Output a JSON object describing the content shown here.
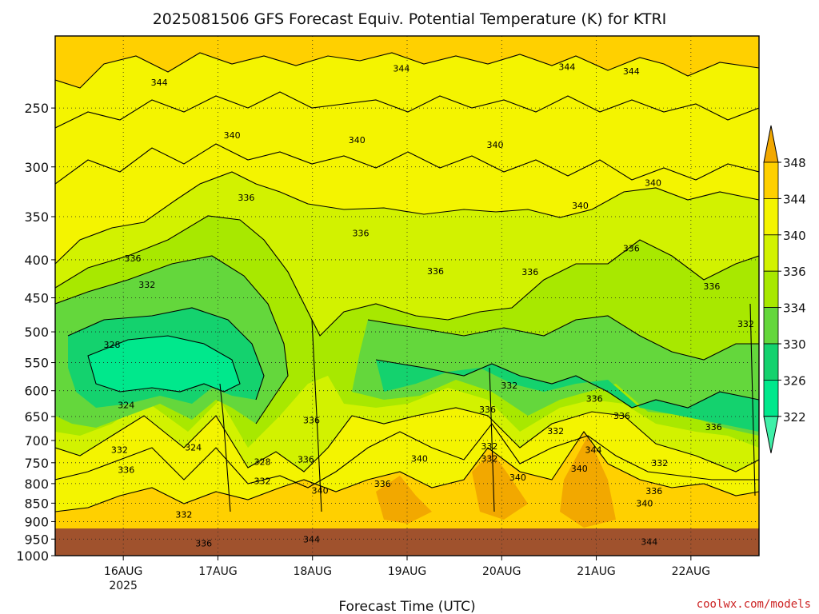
{
  "chart_data": {
    "type": "heatmap",
    "title": "2025081506 GFS Forecast Equiv. Potential Temperature (K) for KTRI",
    "xlabel": "Forecast Time (UTC)",
    "ylabel": "",
    "y_axis": {
      "scale": "log",
      "inverted": true,
      "ylim": [
        1000,
        200
      ]
    },
    "yticks": [
      250,
      300,
      350,
      400,
      450,
      500,
      550,
      600,
      650,
      700,
      750,
      800,
      850,
      900,
      950,
      1000
    ],
    "x_axis": {
      "xlim": [
        -0.72,
        6.72
      ],
      "unit": "days from 16AUG 00Z"
    },
    "xticks": [
      {
        "x": 0,
        "label": "16AUG",
        "sublabel": "2025"
      },
      {
        "x": 1,
        "label": "17AUG",
        "sublabel": ""
      },
      {
        "x": 2,
        "label": "18AUG",
        "sublabel": ""
      },
      {
        "x": 3,
        "label": "19AUG",
        "sublabel": ""
      },
      {
        "x": 4,
        "label": "20AUG",
        "sublabel": ""
      },
      {
        "x": 5,
        "label": "21AUG",
        "sublabel": ""
      },
      {
        "x": 6,
        "label": "22AUG",
        "sublabel": ""
      }
    ],
    "grid": true,
    "ground_below_hpa": 965,
    "colorbar": {
      "labels": [
        "348",
        "344",
        "340",
        "336",
        "334",
        "330",
        "326",
        "322"
      ],
      "colors": [
        "#f2a800",
        "#ffd000",
        "#f4f400",
        "#d2f200",
        "#a8e800",
        "#64d73c",
        "#14d26e",
        "#00e88c",
        "#40f0a8"
      ]
    },
    "contour_labels": [
      {
        "text": "344",
        "x": 0.38,
        "p": 231
      },
      {
        "text": "344",
        "x": 2.94,
        "p": 221
      },
      {
        "text": "344",
        "x": 4.69,
        "p": 220
      },
      {
        "text": "344",
        "x": 5.37,
        "p": 223
      },
      {
        "text": "340",
        "x": 1.15,
        "p": 272
      },
      {
        "text": "340",
        "x": 2.47,
        "p": 276
      },
      {
        "text": "340",
        "x": 3.93,
        "p": 280
      },
      {
        "text": "340",
        "x": 5.6,
        "p": 315
      },
      {
        "text": "340",
        "x": 4.83,
        "p": 338
      },
      {
        "text": "336",
        "x": 1.3,
        "p": 330
      },
      {
        "text": "336",
        "x": 2.51,
        "p": 368
      },
      {
        "text": "336",
        "x": 3.3,
        "p": 414
      },
      {
        "text": "336",
        "x": 0.1,
        "p": 398
      },
      {
        "text": "336",
        "x": 4.3,
        "p": 415
      },
      {
        "text": "336",
        "x": 5.37,
        "p": 386
      },
      {
        "text": "336",
        "x": 6.22,
        "p": 434
      },
      {
        "text": "332",
        "x": 0.25,
        "p": 432
      },
      {
        "text": "332",
        "x": 6.58,
        "p": 488
      },
      {
        "text": "328",
        "x": -0.12,
        "p": 520
      },
      {
        "text": "324",
        "x": 0.03,
        "p": 627
      },
      {
        "text": "336",
        "x": 1.99,
        "p": 657
      },
      {
        "text": "336",
        "x": 3.85,
        "p": 636
      },
      {
        "text": "332",
        "x": 4.08,
        "p": 590
      },
      {
        "text": "332",
        "x": 4.57,
        "p": 680
      },
      {
        "text": "336",
        "x": 4.98,
        "p": 615
      },
      {
        "text": "336",
        "x": 5.27,
        "p": 648
      },
      {
        "text": "336",
        "x": 6.24,
        "p": 671
      },
      {
        "text": "332",
        "x": 3.87,
        "p": 712
      },
      {
        "text": "332",
        "x": -0.04,
        "p": 720
      },
      {
        "text": "324",
        "x": 0.74,
        "p": 715
      },
      {
        "text": "328",
        "x": 1.47,
        "p": 748
      },
      {
        "text": "336",
        "x": 1.93,
        "p": 742
      },
      {
        "text": "340",
        "x": 3.13,
        "p": 740
      },
      {
        "text": "332",
        "x": 3.87,
        "p": 740
      },
      {
        "text": "344",
        "x": 4.97,
        "p": 720
      },
      {
        "text": "332",
        "x": 5.67,
        "p": 750
      },
      {
        "text": "336",
        "x": 0.03,
        "p": 766
      },
      {
        "text": "340",
        "x": 4.82,
        "p": 763
      },
      {
        "text": "332",
        "x": 1.47,
        "p": 793
      },
      {
        "text": "340",
        "x": 4.17,
        "p": 785
      },
      {
        "text": "340",
        "x": 2.08,
        "p": 817
      },
      {
        "text": "336",
        "x": 2.74,
        "p": 800
      },
      {
        "text": "336",
        "x": 5.61,
        "p": 818
      },
      {
        "text": "340",
        "x": 5.51,
        "p": 850
      },
      {
        "text": "332",
        "x": 0.64,
        "p": 880
      },
      {
        "text": "336",
        "x": 0.85,
        "p": 962
      },
      {
        "text": "344",
        "x": 1.99,
        "p": 950
      },
      {
        "text": "344",
        "x": 5.56,
        "p": 958
      }
    ]
  },
  "credit": "coolwx.com/models"
}
